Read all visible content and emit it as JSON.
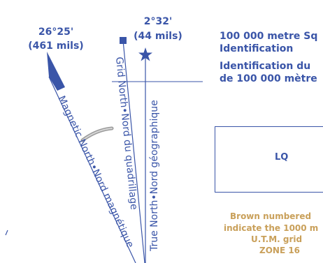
{
  "magnetic": {
    "angle": "26°25'",
    "mils": "(461 mils)",
    "line_label": "Magnetic North•Nord magnétique"
  },
  "grid_to_true": {
    "angle": "2°32'",
    "mils": "(44 mils)"
  },
  "grid_line_label": "Grid North•Nord du quadrillage",
  "true_line_label": "True North•Nord géographique",
  "side_block": {
    "line1": "100 000 metre Sq",
    "line2": "Identification",
    "line3": "Identification du",
    "line4": "de 100 000 mètre"
  },
  "square_box": {
    "code": "LQ"
  },
  "brown_note": {
    "line1": "Brown numbered",
    "line2": "indicate the 1000 m",
    "line3": "U.T.M. grid",
    "line4": "ZONE 16"
  },
  "colors": {
    "blue": "#3a55a8",
    "brown": "#c9a05a",
    "arc": "#9a9a9a"
  }
}
